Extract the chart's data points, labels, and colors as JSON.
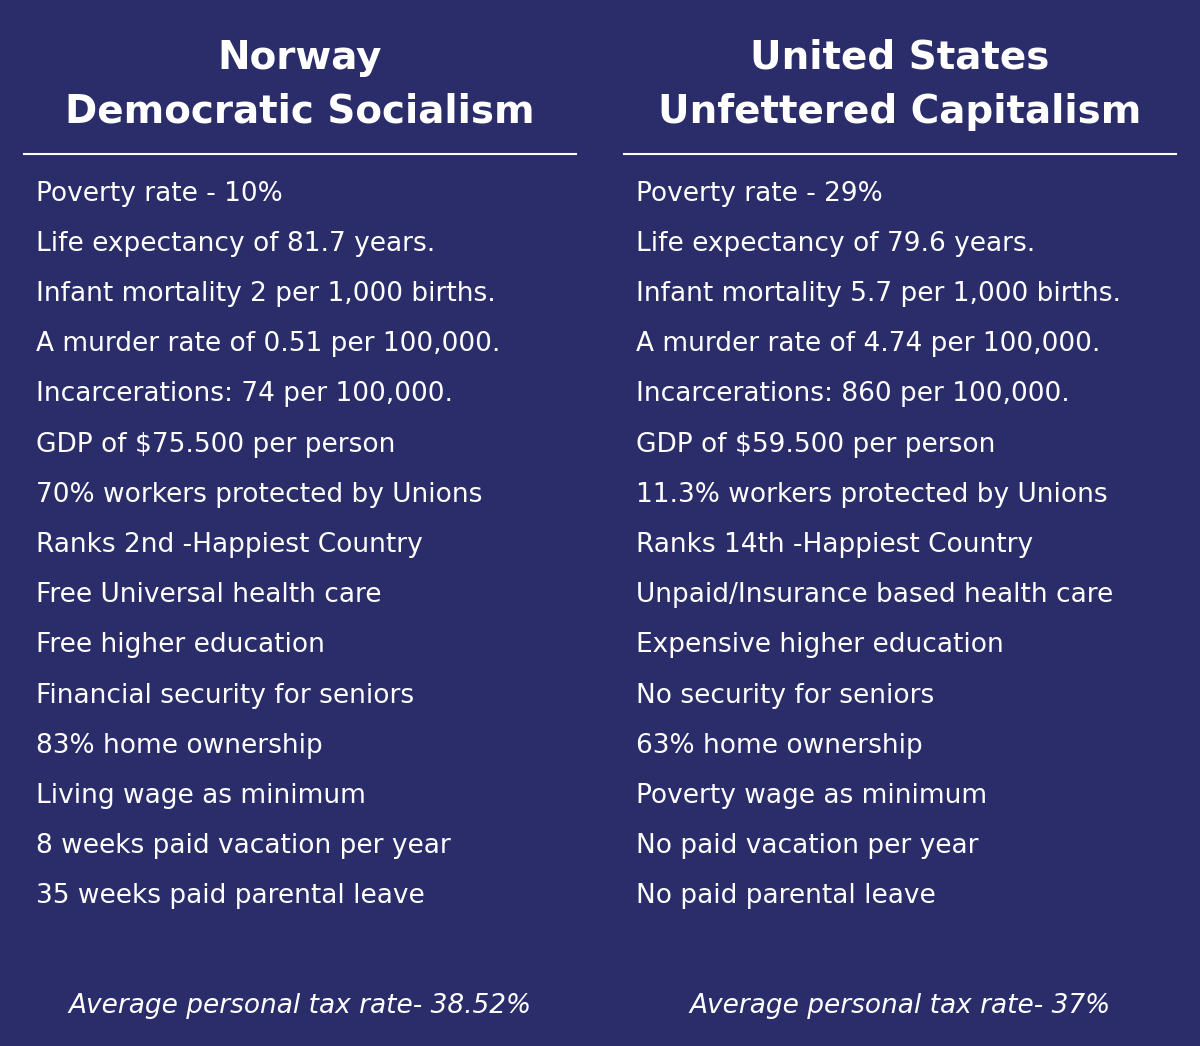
{
  "left_bg_color": "#2B2D6B",
  "right_bg_color": "#5C0A14",
  "text_color": "#FFFFFF",
  "left_title_line1": "Norway",
  "left_title_line2": "Democratic Socialism",
  "right_title_line1": "United States",
  "right_title_line2": "Unfettered Capitalism",
  "left_items": [
    "Poverty rate - 10%",
    "Life expectancy of 81.7 years.",
    "Infant mortality 2 per 1,000 births.",
    "A murder rate of 0.51 per 100,000.",
    "Incarcerations: 74 per 100,000.",
    "GDP of $75.500 per person",
    "70% workers protected by Unions",
    "Ranks 2nd -Happiest Country",
    "Free Universal health care",
    "Free higher education",
    "Financial security for seniors",
    "83% home ownership",
    "Living wage as minimum",
    "8 weeks paid vacation per year",
    "35 weeks paid parental leave"
  ],
  "right_items": [
    "Poverty rate - 29%",
    "Life expectancy of 79.6 years.",
    "Infant mortality 5.7 per 1,000 births.",
    "A murder rate of 4.74 per 100,000.",
    "Incarcerations: 860 per 100,000.",
    "GDP of $59.500 per person",
    "11.3% workers protected by Unions",
    "Ranks 14th -Happiest Country",
    "Unpaid/Insurance based health care",
    "Expensive higher education",
    "No security for seniors",
    "63% home ownership",
    "Poverty wage as minimum",
    "No paid vacation per year",
    "No paid parental leave"
  ],
  "left_footer": "Average personal tax rate- 38.52%",
  "right_footer": "Average personal tax rate- 37%",
  "title_fontsize": 28,
  "item_fontsize": 19,
  "footer_fontsize": 19,
  "figsize": [
    12.0,
    10.46
  ]
}
